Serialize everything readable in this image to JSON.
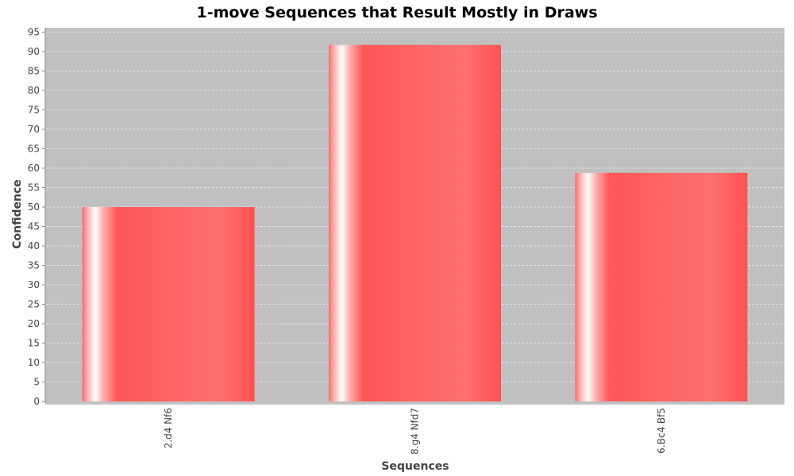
{
  "chart_data": {
    "type": "bar",
    "title": "1-move Sequences that Result Mostly in Draws",
    "xlabel": "Sequences",
    "ylabel": "Confidence",
    "categories": [
      "2.d4 Nf6",
      "8.g4 Nfd7",
      "6.Bc4 Bf5"
    ],
    "values": [
      50,
      91.7,
      58.8
    ],
    "ylim": [
      0,
      96
    ],
    "yticks": [
      0,
      5,
      10,
      15,
      20,
      25,
      30,
      35,
      40,
      45,
      50,
      55,
      60,
      65,
      70,
      75,
      80,
      85,
      90,
      95
    ],
    "grid": true,
    "legend": "none"
  },
  "colors": {
    "plot_background": "#c0c0c0",
    "bar": "#ff5555",
    "bar_highlight": "#ffffff",
    "gridline": "#eeeeee",
    "axis": "#888888"
  }
}
